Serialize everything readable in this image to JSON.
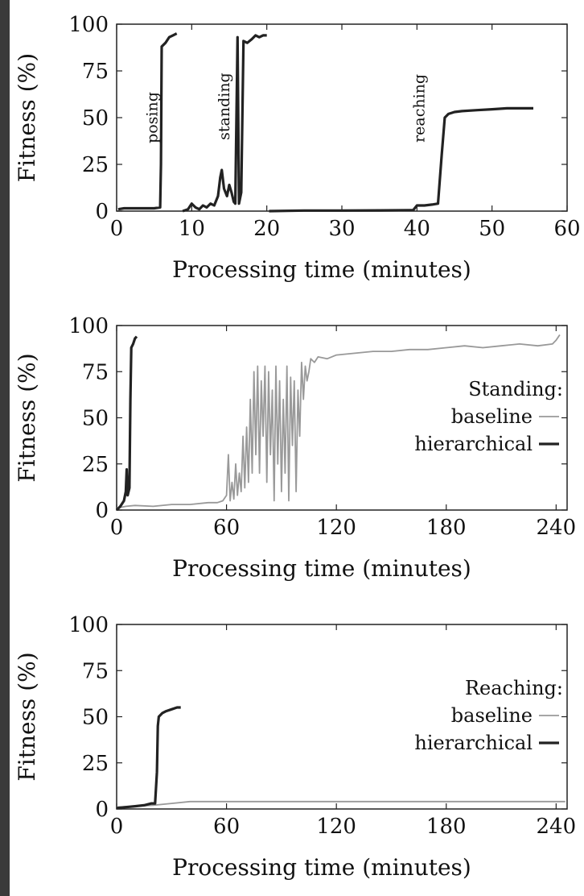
{
  "chart_data": [
    {
      "type": "line",
      "xlabel": "Processing time (minutes)",
      "ylabel": "Fitness (%)",
      "xlim": [
        0,
        60
      ],
      "ylim": [
        0,
        100
      ],
      "xticks": [
        0,
        10,
        20,
        30,
        40,
        50,
        60
      ],
      "yticks": [
        0,
        25,
        50,
        75,
        100
      ],
      "grid": false,
      "series": [
        {
          "name": "posing",
          "color": "#222222",
          "stroke": "thick",
          "points": [
            [
              0.2,
              1
            ],
            [
              1,
              1.5
            ],
            [
              3,
              1.5
            ],
            [
              5,
              1.5
            ],
            [
              5.8,
              2
            ],
            [
              5.9,
              25
            ],
            [
              6,
              88
            ],
            [
              6.5,
              90
            ],
            [
              7,
              93
            ],
            [
              7.5,
              94
            ],
            [
              8,
              95
            ]
          ]
        },
        {
          "name": "standing",
          "color": "#222222",
          "stroke": "thick",
          "points": [
            [
              8.8,
              0
            ],
            [
              9.5,
              1
            ],
            [
              10,
              4
            ],
            [
              10.5,
              2
            ],
            [
              11,
              1
            ],
            [
              11.5,
              3
            ],
            [
              12,
              2
            ],
            [
              12.5,
              4
            ],
            [
              13,
              3
            ],
            [
              13.5,
              8
            ],
            [
              13.8,
              18
            ],
            [
              14,
              22
            ],
            [
              14.3,
              12
            ],
            [
              14.7,
              8
            ],
            [
              15,
              14
            ],
            [
              15.3,
              10
            ],
            [
              15.6,
              5
            ],
            [
              15.8,
              4
            ],
            [
              16.1,
              93
            ],
            [
              16.3,
              4
            ],
            [
              16.6,
              10
            ],
            [
              16.9,
              91
            ],
            [
              17.4,
              90
            ],
            [
              18,
              92
            ],
            [
              18.5,
              94
            ],
            [
              19,
              93
            ],
            [
              19.5,
              94
            ],
            [
              20,
              94
            ]
          ]
        },
        {
          "name": "reaching",
          "color": "#222222",
          "stroke": "thick",
          "points": [
            [
              20.3,
              0
            ],
            [
              25,
              0.3
            ],
            [
              30,
              0.3
            ],
            [
              35,
              0.4
            ],
            [
              39.5,
              0.5
            ],
            [
              40,
              3
            ],
            [
              41,
              3
            ],
            [
              42,
              3.5
            ],
            [
              42.8,
              4
            ],
            [
              43.3,
              30
            ],
            [
              43.7,
              50
            ],
            [
              44.2,
              52
            ],
            [
              45,
              53
            ],
            [
              46,
              53.5
            ],
            [
              48,
              54
            ],
            [
              50,
              54.5
            ],
            [
              52,
              55
            ],
            [
              54,
              55
            ],
            [
              55.5,
              55
            ]
          ]
        }
      ],
      "annotations": [
        {
          "text": "posing",
          "x": 5.4,
          "y": 50
        },
        {
          "text": "standing",
          "x": 15.0,
          "y": 56
        },
        {
          "text": "reaching",
          "x": 41.0,
          "y": 55
        }
      ]
    },
    {
      "type": "line",
      "xlabel": "Processing time (minutes)",
      "ylabel": "Fitness (%)",
      "xlim": [
        0,
        246
      ],
      "ylim": [
        0,
        100
      ],
      "xticks": [
        0,
        60,
        120,
        180,
        240
      ],
      "yticks": [
        0,
        25,
        50,
        75,
        100
      ],
      "grid": false,
      "legend": {
        "title": "Standing:",
        "position": "right"
      },
      "series": [
        {
          "name": "baseline",
          "color": "#999999",
          "stroke": "thin",
          "points": [
            [
              0,
              1
            ],
            [
              5,
              2
            ],
            [
              10,
              2.5
            ],
            [
              20,
              2
            ],
            [
              30,
              3
            ],
            [
              40,
              3
            ],
            [
              50,
              4
            ],
            [
              55,
              4
            ],
            [
              58,
              5
            ],
            [
              60,
              8
            ],
            [
              61,
              30
            ],
            [
              62,
              5
            ],
            [
              63,
              15
            ],
            [
              64,
              6
            ],
            [
              65,
              25
            ],
            [
              66,
              8
            ],
            [
              67,
              20
            ],
            [
              68,
              10
            ],
            [
              69,
              40
            ],
            [
              70,
              12
            ],
            [
              71,
              45
            ],
            [
              72,
              15
            ],
            [
              73,
              60
            ],
            [
              74,
              20
            ],
            [
              75,
              75
            ],
            [
              76,
              30
            ],
            [
              77,
              78
            ],
            [
              78,
              20
            ],
            [
              79,
              70
            ],
            [
              80,
              40
            ],
            [
              81,
              78
            ],
            [
              82,
              15
            ],
            [
              83,
              75
            ],
            [
              84,
              30
            ],
            [
              85,
              65
            ],
            [
              86,
              5
            ],
            [
              87,
              78
            ],
            [
              88,
              25
            ],
            [
              89,
              70
            ],
            [
              90,
              10
            ],
            [
              91,
              60
            ],
            [
              92,
              20
            ],
            [
              93,
              78
            ],
            [
              94,
              5
            ],
            [
              95,
              72
            ],
            [
              96,
              35
            ],
            [
              97,
              70
            ],
            [
              98,
              10
            ],
            [
              99,
              65
            ],
            [
              100,
              40
            ],
            [
              101,
              80
            ],
            [
              102,
              60
            ],
            [
              103,
              78
            ],
            [
              104,
              70
            ],
            [
              105,
              75
            ],
            [
              106,
              82
            ],
            [
              108,
              80
            ],
            [
              110,
              83
            ],
            [
              115,
              82
            ],
            [
              120,
              84
            ],
            [
              130,
              85
            ],
            [
              140,
              86
            ],
            [
              150,
              86
            ],
            [
              160,
              87
            ],
            [
              170,
              87
            ],
            [
              180,
              88
            ],
            [
              190,
              89
            ],
            [
              200,
              88
            ],
            [
              210,
              89
            ],
            [
              220,
              90
            ],
            [
              230,
              89
            ],
            [
              238,
              90
            ],
            [
              240,
              92
            ],
            [
              242,
              95
            ]
          ]
        },
        {
          "name": "hierarchical",
          "color": "#222222",
          "stroke": "thick",
          "points": [
            [
              0,
              0
            ],
            [
              2,
              2
            ],
            [
              4,
              5
            ],
            [
              5,
              10
            ],
            [
              5.5,
              22
            ],
            [
              6,
              8
            ],
            [
              7,
              12
            ],
            [
              7.5,
              60
            ],
            [
              8,
              88
            ],
            [
              9,
              90
            ],
            [
              10,
              93
            ],
            [
              11,
              94
            ]
          ]
        }
      ]
    },
    {
      "type": "line",
      "xlabel": "Processing time (minutes)",
      "ylabel": "Fitness (%)",
      "xlim": [
        0,
        246
      ],
      "ylim": [
        0,
        100
      ],
      "xticks": [
        0,
        60,
        120,
        180,
        240
      ],
      "yticks": [
        0,
        25,
        50,
        75,
        100
      ],
      "grid": false,
      "legend": {
        "title": "Reaching:",
        "position": "right"
      },
      "series": [
        {
          "name": "baseline",
          "color": "#999999",
          "stroke": "thin",
          "points": [
            [
              0,
              1
            ],
            [
              10,
              1.5
            ],
            [
              20,
              2
            ],
            [
              30,
              3
            ],
            [
              40,
              4
            ],
            [
              60,
              4
            ],
            [
              90,
              4
            ],
            [
              120,
              4
            ],
            [
              150,
              4
            ],
            [
              180,
              4
            ],
            [
              210,
              4
            ],
            [
              240,
              4
            ],
            [
              245,
              4
            ]
          ]
        },
        {
          "name": "hierarchical",
          "color": "#222222",
          "stroke": "thick",
          "points": [
            [
              0,
              0.5
            ],
            [
              5,
              1
            ],
            [
              10,
              1.5
            ],
            [
              15,
              2
            ],
            [
              19,
              3
            ],
            [
              21,
              3
            ],
            [
              22,
              20
            ],
            [
              22.5,
              45
            ],
            [
              23,
              50
            ],
            [
              25,
              52
            ],
            [
              27,
              53
            ],
            [
              30,
              54
            ],
            [
              33,
              55
            ],
            [
              35,
              55
            ]
          ]
        }
      ]
    }
  ]
}
